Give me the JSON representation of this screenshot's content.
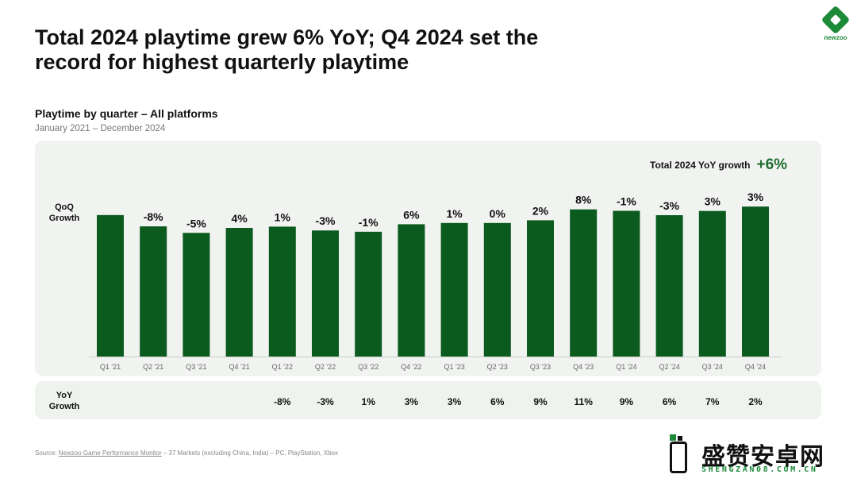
{
  "header": {
    "title": "Total 2024 playtime grew 6% YoY; Q4 2024 set the record for highest quarterly playtime",
    "brand": "newzoo"
  },
  "chart_header": {
    "subtitle": "Playtime by quarter – All platforms",
    "date_range": "January 2021 – December 2024"
  },
  "row_labels": {
    "qoq": "QoQ Growth",
    "yoy": "YoY Growth"
  },
  "total_growth": {
    "label": "Total 2024 YoY growth",
    "value": "+6%"
  },
  "chart_data": {
    "type": "bar",
    "title": "Playtime by quarter – All platforms",
    "subtitle": "January 2021 – December 2024",
    "categories": [
      "Q1 '21",
      "Q2 '21",
      "Q3 '21",
      "Q4 '21",
      "Q1 '22",
      "Q2 '22",
      "Q3 '22",
      "Q4 '22",
      "Q1 '23",
      "Q2 '23",
      "Q3 '23",
      "Q4 '23",
      "Q1 '24",
      "Q2 '24",
      "Q3 '24",
      "Q4 '24"
    ],
    "values": [
      100,
      92,
      87.4,
      90.9,
      91.8,
      89.1,
      88.2,
      93.5,
      94.4,
      94.4,
      96.3,
      104.0,
      103.0,
      99.9,
      102.9,
      106.0
    ],
    "ylim": [
      0,
      110
    ],
    "qoq_growth": [
      "",
      "-8%",
      "-5%",
      "4%",
      "1%",
      "-3%",
      "-1%",
      "6%",
      "1%",
      "0%",
      "2%",
      "8%",
      "-1%",
      "-3%",
      "3%",
      "3%"
    ],
    "yoy_growth": [
      "",
      "",
      "",
      "",
      "-8%",
      "-3%",
      "1%",
      "3%",
      "3%",
      "6%",
      "9%",
      "11%",
      "9%",
      "6%",
      "7%",
      "2%"
    ],
    "bar_color": "#0b5a1e",
    "legend": "none",
    "grid": false
  },
  "footer": {
    "source_prefix": "Source: ",
    "source_link": "Newzoo Game Performance Monitor",
    "source_rest": " – 37 Markets (excluding China, India) – PC, PlayStation, Xbox"
  },
  "watermark": {
    "title": "盛赞安卓网",
    "subtitle": "SHENGZAN08.COM.CN",
    "icon": "phone-icon"
  }
}
